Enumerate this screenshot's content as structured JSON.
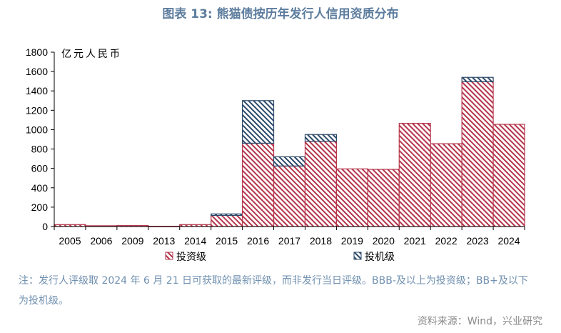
{
  "title": "图表 13: 熊猫债按历年发行人信用资质分布",
  "chart_data": {
    "type": "bar",
    "stacked": true,
    "title": "图表 13: 熊猫债按历年发行人信用资质分布",
    "categories": [
      "2005",
      "2006",
      "2009",
      "2013",
      "2014",
      "2015",
      "2016",
      "2017",
      "2018",
      "2019",
      "2020",
      "2021",
      "2022",
      "2023",
      "2024"
    ],
    "series": [
      {
        "name": "投资级",
        "color": "#b5354b",
        "fill": "diagonal-hatch",
        "values": [
          20,
          8,
          10,
          2,
          20,
          115,
          860,
          625,
          880,
          595,
          590,
          1065,
          855,
          1495,
          1055
        ]
      },
      {
        "name": "投机级",
        "color": "#2d4a6a",
        "fill": "diagonal-hatch",
        "values": [
          0,
          0,
          0,
          0,
          0,
          15,
          440,
          95,
          70,
          0,
          0,
          0,
          0,
          45,
          0
        ]
      }
    ],
    "xlabel": "",
    "ylabel": "亿元人民币",
    "ylim": [
      0,
      1800
    ],
    "yticks": [
      0,
      200,
      400,
      600,
      800,
      1000,
      1200,
      1400,
      1600,
      1800
    ],
    "grid": false,
    "legend": "bottom"
  },
  "note_lines": [
    "注：发行人评级取 2024 年 6 月 21 日可获取的最新评级，而非发行当日评级。BBB-及以上为投资级；BB+及以下",
    "为投机级。"
  ],
  "source": "资料来源：Wind，兴业研究"
}
